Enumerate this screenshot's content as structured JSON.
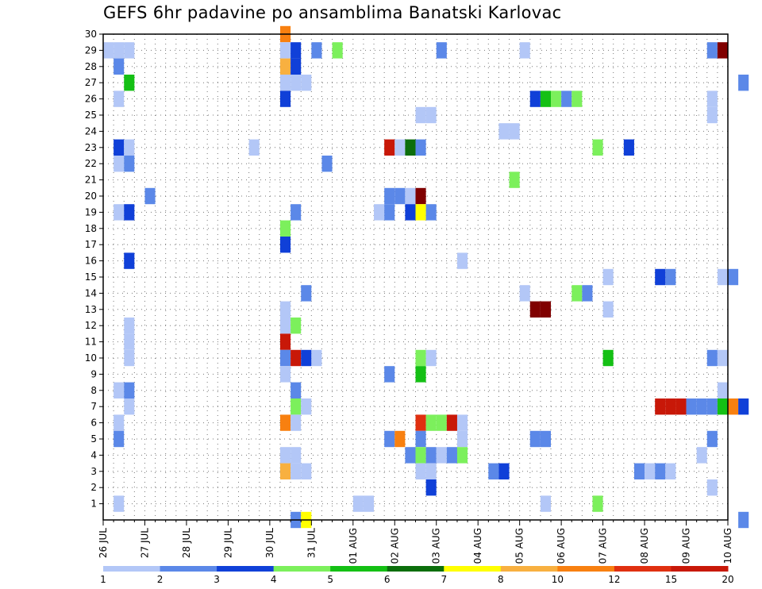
{
  "chart_data": {
    "type": "heatmap",
    "title": "GEFS 6hr padavine po ansamblima Banatski Karlovac",
    "x_tick_labels": [
      "26 JUL",
      "27 JUL",
      "28 JUL",
      "29 JUL",
      "30 JUL",
      "31 JUL",
      "01 AUG",
      "02 AUG",
      "03 AUG",
      "04 AUG",
      "05 AUG",
      "06 AUG",
      "07 AUG",
      "08 AUG",
      "09 AUG",
      "10 AUG"
    ],
    "x_unit": "6h steps, 4 per day starting 26 JUL 00 UTC",
    "y_tick_labels": [
      "1",
      "2",
      "3",
      "4",
      "5",
      "6",
      "7",
      "8",
      "9",
      "10",
      "11",
      "12",
      "13",
      "14",
      "15",
      "16",
      "17",
      "18",
      "19",
      "20",
      "21",
      "22",
      "23",
      "24",
      "25",
      "26",
      "27",
      "28",
      "29",
      "30"
    ],
    "ylim": [
      0,
      30
    ],
    "grid": true,
    "color_levels": [
      1,
      2,
      3,
      4,
      5,
      6,
      7,
      8,
      10,
      12,
      15,
      20
    ],
    "colors": [
      "#b3c7f7",
      "#5b88e8",
      "#1040d8",
      "#7cf05c",
      "#14c014",
      "#0c6e0c",
      "#ffff00",
      "#f8b040",
      "#f88010",
      "#e03010",
      "#c81808",
      "#800000"
    ],
    "cells": [
      [
        0,
        29,
        0
      ],
      [
        1,
        29,
        0
      ],
      [
        1,
        28,
        1
      ],
      [
        1,
        26,
        0
      ],
      [
        1,
        23,
        2
      ],
      [
        1,
        22,
        0
      ],
      [
        1,
        19,
        0
      ],
      [
        1,
        8,
        0
      ],
      [
        1,
        6,
        0
      ],
      [
        1,
        5,
        1
      ],
      [
        1,
        1,
        0
      ],
      [
        2,
        29,
        0
      ],
      [
        2,
        27,
        4
      ],
      [
        2,
        23,
        0
      ],
      [
        2,
        22,
        1
      ],
      [
        2,
        19,
        2
      ],
      [
        2,
        16,
        2
      ],
      [
        2,
        12,
        0
      ],
      [
        2,
        11,
        0
      ],
      [
        2,
        10,
        0
      ],
      [
        2,
        8,
        1
      ],
      [
        2,
        7,
        0
      ],
      [
        4,
        20,
        1
      ],
      [
        14,
        23,
        0
      ],
      [
        17,
        30,
        8
      ],
      [
        17,
        29,
        0
      ],
      [
        17,
        28,
        7
      ],
      [
        17,
        27,
        0
      ],
      [
        17,
        26,
        2
      ],
      [
        17,
        18,
        3
      ],
      [
        17,
        17,
        2
      ],
      [
        17,
        13,
        0
      ],
      [
        17,
        12,
        0
      ],
      [
        17,
        11,
        10
      ],
      [
        17,
        10,
        1
      ],
      [
        17,
        9,
        0
      ],
      [
        17,
        6,
        8
      ],
      [
        17,
        4,
        0
      ],
      [
        17,
        3,
        7
      ],
      [
        18,
        29,
        2
      ],
      [
        18,
        28,
        2
      ],
      [
        18,
        27,
        0
      ],
      [
        18,
        19,
        1
      ],
      [
        18,
        12,
        3
      ],
      [
        18,
        10,
        10
      ],
      [
        18,
        8,
        1
      ],
      [
        18,
        7,
        3
      ],
      [
        18,
        6,
        0
      ],
      [
        18,
        4,
        0
      ],
      [
        18,
        3,
        0
      ],
      [
        18,
        0,
        1
      ],
      [
        19,
        27,
        0
      ],
      [
        19,
        14,
        1
      ],
      [
        19,
        10,
        2
      ],
      [
        19,
        7,
        0
      ],
      [
        19,
        3,
        0
      ],
      [
        19,
        0,
        6
      ],
      [
        20,
        29,
        1
      ],
      [
        20,
        10,
        0
      ],
      [
        21,
        22,
        1
      ],
      [
        22,
        29,
        3
      ],
      [
        24,
        1,
        0
      ],
      [
        25,
        1,
        0
      ],
      [
        26,
        19,
        0
      ],
      [
        27,
        23,
        10
      ],
      [
        27,
        20,
        1
      ],
      [
        27,
        19,
        1
      ],
      [
        27,
        9,
        1
      ],
      [
        27,
        5,
        1
      ],
      [
        28,
        23,
        0
      ],
      [
        28,
        20,
        1
      ],
      [
        28,
        5,
        8
      ],
      [
        29,
        23,
        5
      ],
      [
        29,
        20,
        0
      ],
      [
        29,
        19,
        2
      ],
      [
        29,
        4,
        1
      ],
      [
        30,
        23,
        1
      ],
      [
        30,
        25,
        0
      ],
      [
        30,
        20,
        11
      ],
      [
        30,
        19,
        6
      ],
      [
        30,
        10,
        3
      ],
      [
        30,
        9,
        4
      ],
      [
        30,
        6,
        9
      ],
      [
        30,
        5,
        1
      ],
      [
        30,
        4,
        3
      ],
      [
        30,
        3,
        0
      ],
      [
        31,
        25,
        0
      ],
      [
        31,
        19,
        1
      ],
      [
        31,
        10,
        0
      ],
      [
        31,
        6,
        3
      ],
      [
        31,
        4,
        1
      ],
      [
        31,
        3,
        0
      ],
      [
        31,
        2,
        2
      ],
      [
        32,
        29,
        1
      ],
      [
        32,
        6,
        3
      ],
      [
        32,
        4,
        0
      ],
      [
        33,
        6,
        10
      ],
      [
        33,
        4,
        1
      ],
      [
        34,
        16,
        0
      ],
      [
        34,
        6,
        0
      ],
      [
        34,
        5,
        0
      ],
      [
        34,
        4,
        3
      ],
      [
        37,
        3,
        1
      ],
      [
        38,
        24,
        0
      ],
      [
        38,
        3,
        2
      ],
      [
        39,
        24,
        0
      ],
      [
        39,
        21,
        3
      ],
      [
        40,
        29,
        0
      ],
      [
        40,
        14,
        0
      ],
      [
        41,
        26,
        2
      ],
      [
        41,
        13,
        11
      ],
      [
        41,
        5,
        1
      ],
      [
        42,
        26,
        4
      ],
      [
        42,
        13,
        11
      ],
      [
        42,
        5,
        1
      ],
      [
        42,
        1,
        0
      ],
      [
        43,
        26,
        3
      ],
      [
        44,
        26,
        1
      ],
      [
        45,
        26,
        3
      ],
      [
        45,
        14,
        3
      ],
      [
        46,
        14,
        1
      ],
      [
        47,
        23,
        3
      ],
      [
        47,
        1,
        3
      ],
      [
        48,
        15,
        0
      ],
      [
        48,
        13,
        0
      ],
      [
        48,
        10,
        4
      ],
      [
        50,
        23,
        2
      ],
      [
        51,
        3,
        1
      ],
      [
        52,
        3,
        0
      ],
      [
        53,
        15,
        2
      ],
      [
        53,
        7,
        10
      ],
      [
        53,
        3,
        1
      ],
      [
        54,
        15,
        1
      ],
      [
        54,
        7,
        10
      ],
      [
        54,
        3,
        0
      ],
      [
        55,
        7,
        10
      ],
      [
        56,
        7,
        1
      ],
      [
        57,
        4,
        0
      ],
      [
        57,
        7,
        1
      ],
      [
        58,
        29,
        1
      ],
      [
        58,
        26,
        0
      ],
      [
        58,
        25,
        0
      ],
      [
        58,
        10,
        1
      ],
      [
        58,
        7,
        1
      ],
      [
        58,
        5,
        1
      ],
      [
        58,
        2,
        0
      ],
      [
        59,
        29,
        11
      ],
      [
        59,
        15,
        0
      ],
      [
        59,
        10,
        0
      ],
      [
        59,
        8,
        0
      ],
      [
        59,
        7,
        4
      ],
      [
        60,
        15,
        1
      ],
      [
        60,
        7,
        8
      ],
      [
        61,
        27,
        1
      ],
      [
        61,
        7,
        2
      ],
      [
        61,
        0,
        1
      ]
    ]
  }
}
